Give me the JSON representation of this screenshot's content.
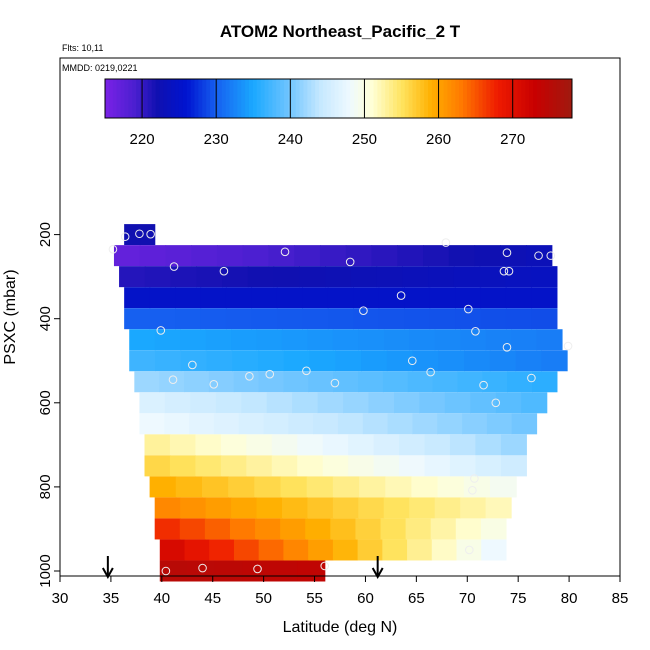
{
  "chart_data": {
    "type": "heatmap",
    "title": "ATOM2 Northeast_Pacific_2 T",
    "flights_label": "Flts: 10,11",
    "date_label": "MMDD: 0219,0221",
    "xlabel": "Latitude (deg N)",
    "ylabel": "PSXC (mbar)",
    "xlim": [
      30,
      85
    ],
    "ylim": [
      1000,
      100
    ],
    "y_reversed": true,
    "xticks": [
      30,
      35,
      40,
      45,
      50,
      55,
      60,
      65,
      70,
      75,
      80,
      85
    ],
    "yticks": [
      200,
      400,
      600,
      800,
      1000
    ],
    "colorbar": {
      "range": [
        215,
        278
      ],
      "ticks": [
        220,
        230,
        240,
        250,
        260,
        270
      ],
      "stops": [
        {
          "v": 215,
          "c": "#7a22e6"
        },
        {
          "v": 219,
          "c": "#4b1fd0"
        },
        {
          "v": 222,
          "c": "#1010b0"
        },
        {
          "v": 226,
          "c": "#0014d0"
        },
        {
          "v": 230,
          "c": "#1660f0"
        },
        {
          "v": 235,
          "c": "#1aa8ff"
        },
        {
          "v": 240,
          "c": "#73c6ff"
        },
        {
          "v": 244,
          "c": "#c5e8ff"
        },
        {
          "v": 248,
          "c": "#eef9ff"
        },
        {
          "v": 251,
          "c": "#ffffd6"
        },
        {
          "v": 255,
          "c": "#ffe460"
        },
        {
          "v": 259,
          "c": "#ffb000"
        },
        {
          "v": 263,
          "c": "#ff7b00"
        },
        {
          "v": 268,
          "c": "#ee1a00"
        },
        {
          "v": 273,
          "c": "#c80000"
        },
        {
          "v": 278,
          "c": "#a01a10"
        }
      ]
    },
    "grid": false,
    "rows": [
      {
        "p": 200,
        "xmin": 36.3,
        "xmax": 39.3,
        "t0": 222,
        "t1": 222
      },
      {
        "p": 250,
        "xmin": 35.3,
        "xmax": 78.3,
        "t0": 217,
        "t1": 223
      },
      {
        "p": 300,
        "xmin": 35.8,
        "xmax": 78.8,
        "t0": 221,
        "t1": 224
      },
      {
        "p": 350,
        "xmin": 36.3,
        "xmax": 78.8,
        "t0": 225,
        "t1": 225
      },
      {
        "p": 400,
        "xmin": 36.3,
        "xmax": 78.8,
        "t0": 230,
        "t1": 229
      },
      {
        "p": 450,
        "xmin": 36.8,
        "xmax": 79.3,
        "t0": 235,
        "t1": 232
      },
      {
        "p": 500,
        "xmin": 36.8,
        "xmax": 79.8,
        "t0": 237,
        "t1": 232
      },
      {
        "p": 550,
        "xmin": 37.3,
        "xmax": 78.8,
        "t0": 242,
        "t1": 236
      },
      {
        "p": 600,
        "xmin": 37.8,
        "xmax": 77.8,
        "t0": 246,
        "t1": 238
      },
      {
        "p": 650,
        "xmin": 37.8,
        "xmax": 76.8,
        "t0": 248,
        "t1": 240
      },
      {
        "p": 700,
        "xmin": 38.3,
        "xmax": 75.8,
        "t0": 253,
        "t1": 242
      },
      {
        "p": 750,
        "xmin": 38.3,
        "xmax": 75.8,
        "t0": 256,
        "t1": 245
      },
      {
        "p": 800,
        "xmin": 38.8,
        "xmax": 74.8,
        "t0": 259,
        "t1": 249
      },
      {
        "p": 850,
        "xmin": 39.3,
        "xmax": 74.3,
        "t0": 262,
        "t1": 252
      },
      {
        "p": 900,
        "xmin": 39.3,
        "xmax": 73.8,
        "t0": 267,
        "t1": 250
      },
      {
        "p": 950,
        "xmin": 39.8,
        "xmax": 73.8,
        "t0": 271,
        "t1": 248
      },
      {
        "p": 1000,
        "xmin": 39.8,
        "xmax": 56.0,
        "t0": 275,
        "t1": 274
      }
    ],
    "points": [
      [
        35.2,
        235
      ],
      [
        36.4,
        205
      ],
      [
        37.8,
        198
      ],
      [
        38.9,
        199
      ],
      [
        52.1,
        241
      ],
      [
        58.5,
        265
      ],
      [
        67.9,
        219
      ],
      [
        73.9,
        243
      ],
      [
        77.0,
        250
      ],
      [
        78.2,
        250
      ],
      [
        41.2,
        276
      ],
      [
        46.1,
        287
      ],
      [
        73.6,
        287
      ],
      [
        74.1,
        287
      ],
      [
        63.5,
        345
      ],
      [
        59.8,
        381
      ],
      [
        70.1,
        377
      ],
      [
        39.9,
        428
      ],
      [
        70.8,
        430
      ],
      [
        73.9,
        468
      ],
      [
        79.9,
        465
      ],
      [
        43.0,
        510
      ],
      [
        64.6,
        500
      ],
      [
        66.4,
        527
      ],
      [
        41.1,
        545
      ],
      [
        45.1,
        556
      ],
      [
        48.6,
        537
      ],
      [
        50.6,
        532
      ],
      [
        54.2,
        524
      ],
      [
        57.0,
        553
      ],
      [
        71.6,
        558
      ],
      [
        76.3,
        541
      ],
      [
        72.8,
        600
      ],
      [
        70.7,
        780
      ],
      [
        70.5,
        808
      ],
      [
        70.2,
        950
      ],
      [
        40.4,
        1000
      ],
      [
        44.0,
        993
      ],
      [
        49.4,
        995
      ],
      [
        56.0,
        988
      ]
    ],
    "arrows": [
      34.7,
      61.2
    ]
  }
}
